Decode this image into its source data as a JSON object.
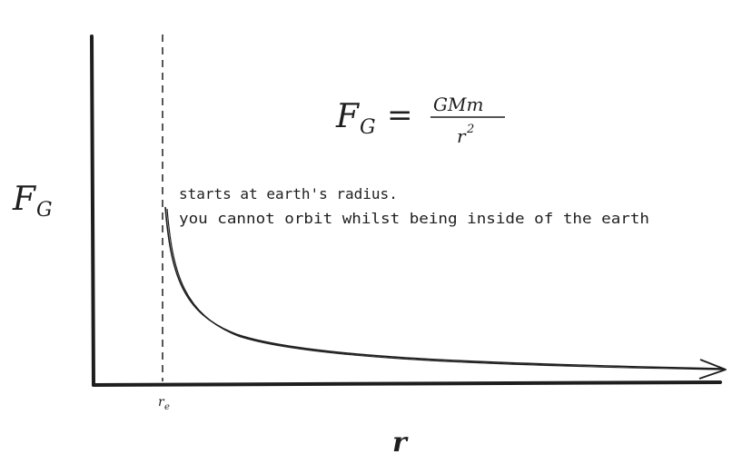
{
  "labels": {
    "y_axis": "F",
    "y_axis_sub": "G",
    "x_axis": "r",
    "x_marker": "r",
    "x_marker_sub": "e"
  },
  "formula": {
    "lhs": "F",
    "lhs_sub": "G",
    "equals": "=",
    "numerator": "GMm",
    "denominator": "r",
    "denominator_exp": "2"
  },
  "annotation": {
    "line1": "starts at earth's radius.",
    "line2": "you cannot orbit whilst being inside of the earth"
  },
  "colors": {
    "ink": "#1e1e1e",
    "background": "#ffffff"
  }
}
